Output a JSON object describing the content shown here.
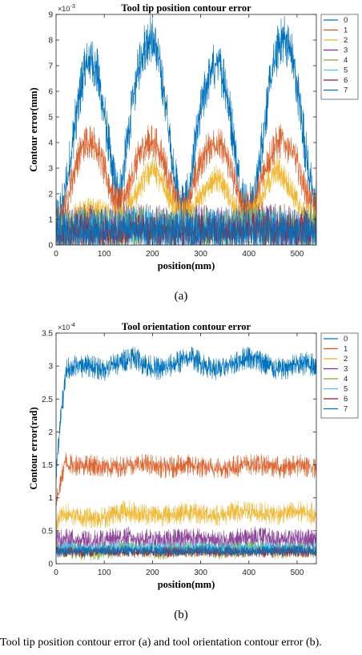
{
  "footer_text": "Tool tip position contour error (a) and tool orientation contour error (b).",
  "chart_data": [
    {
      "type": "line",
      "title": "Tool tip position contour error",
      "xlabel": "position(mm)",
      "ylabel": "Contour error(mm)",
      "xlim": [
        0,
        540
      ],
      "ylim": [
        0,
        9
      ],
      "y_multiplier": "×10^-3",
      "y_multiplier_parts": {
        "base": "×10",
        "exp": "-3"
      },
      "xticks": [
        0,
        100,
        200,
        300,
        400,
        500
      ],
      "yticks": [
        0,
        1,
        2,
        3,
        4,
        5,
        6,
        7,
        8,
        9
      ],
      "legend_position": "right",
      "caption": "(a)",
      "series": [
        {
          "name": "0",
          "color": "#0072BD",
          "x": [
            0,
            10,
            25,
            40,
            55,
            70,
            85,
            100,
            115,
            125,
            135,
            150,
            165,
            180,
            195,
            210,
            225,
            240,
            255,
            265,
            275,
            290,
            305,
            320,
            335,
            350,
            365,
            380,
            395,
            405,
            415,
            430,
            445,
            460,
            475,
            490,
            505,
            520,
            535,
            540
          ],
          "y": [
            1.0,
            1.6,
            3.0,
            5.1,
            6.8,
            7.6,
            7.1,
            5.4,
            3.3,
            2.4,
            2.4,
            4.6,
            6.6,
            7.9,
            8.4,
            7.8,
            6.1,
            3.7,
            2.0,
            1.8,
            2.2,
            4.3,
            6.0,
            7.0,
            7.4,
            6.7,
            4.9,
            2.7,
            1.8,
            1.9,
            2.4,
            4.7,
            6.7,
            8.0,
            8.4,
            7.6,
            5.9,
            3.6,
            1.9,
            1.9
          ],
          "spread": 0.7
        },
        {
          "name": "1",
          "color": "#D95319",
          "x": [
            0,
            15,
            30,
            45,
            60,
            75,
            90,
            105,
            120,
            130,
            145,
            160,
            175,
            190,
            205,
            220,
            235,
            250,
            260,
            270,
            285,
            300,
            315,
            330,
            345,
            360,
            375,
            390,
            400,
            410,
            425,
            440,
            455,
            470,
            485,
            500,
            515,
            530,
            540
          ],
          "y": [
            0.9,
            1.3,
            2.5,
            3.6,
            4.2,
            4.3,
            3.8,
            2.8,
            2.0,
            1.9,
            2.0,
            3.0,
            3.8,
            4.2,
            4.2,
            3.7,
            2.7,
            1.9,
            1.6,
            1.7,
            2.5,
            3.4,
            4.0,
            4.2,
            4.0,
            3.3,
            2.3,
            1.7,
            1.6,
            1.8,
            2.6,
            3.5,
            4.1,
            4.3,
            4.0,
            3.4,
            2.5,
            1.8,
            1.7
          ],
          "spread": 0.5
        },
        {
          "name": "2",
          "color": "#EDB120",
          "x": [
            0,
            30,
            60,
            90,
            120,
            150,
            180,
            200,
            220,
            250,
            280,
            310,
            330,
            350,
            380,
            410,
            440,
            460,
            480,
            510,
            540
          ],
          "y": [
            0.8,
            1.1,
            1.5,
            1.4,
            1.2,
            1.6,
            2.6,
            3.2,
            2.6,
            1.4,
            1.4,
            2.4,
            2.8,
            2.4,
            1.3,
            1.4,
            2.6,
            3.1,
            2.6,
            1.4,
            1.1
          ],
          "spread": 0.4
        },
        {
          "name": "3",
          "color": "#7E2F8E",
          "x": [
            0,
            60,
            120,
            180,
            240,
            300,
            360,
            420,
            480,
            540
          ],
          "y": [
            0.8,
            1.0,
            0.9,
            1.1,
            0.9,
            1.0,
            0.9,
            1.1,
            1.0,
            0.9
          ],
          "spread": 0.6
        },
        {
          "name": "4",
          "color": "#77AC30",
          "x": [
            0,
            60,
            120,
            180,
            240,
            300,
            360,
            420,
            480,
            540
          ],
          "y": [
            0.7,
            0.9,
            0.8,
            1.0,
            0.8,
            0.9,
            0.8,
            1.0,
            0.9,
            0.8
          ],
          "spread": 0.6
        },
        {
          "name": "5",
          "color": "#4DBEEE",
          "x": [
            0,
            60,
            120,
            180,
            240,
            300,
            360,
            420,
            480,
            540
          ],
          "y": [
            0.8,
            0.9,
            0.9,
            0.9,
            0.8,
            0.9,
            0.9,
            0.9,
            0.8,
            0.9
          ],
          "spread": 0.6
        },
        {
          "name": "6",
          "color": "#A2142F",
          "x": [
            0,
            60,
            120,
            180,
            240,
            300,
            360,
            420,
            480,
            540
          ],
          "y": [
            0.6,
            0.8,
            0.7,
            0.8,
            0.7,
            0.8,
            0.7,
            0.8,
            0.7,
            0.7
          ],
          "spread": 0.5
        },
        {
          "name": "7",
          "color": "#0072BD",
          "x": [
            0,
            60,
            120,
            180,
            240,
            300,
            360,
            420,
            480,
            540
          ],
          "y": [
            0.7,
            0.8,
            0.8,
            0.8,
            0.8,
            0.8,
            0.8,
            0.8,
            0.8,
            0.8
          ],
          "spread": 0.6
        }
      ]
    },
    {
      "type": "line",
      "title": "Tool orientation contour error",
      "xlabel": "position(mm)",
      "ylabel": "Contour error(rad)",
      "xlim": [
        0,
        540
      ],
      "ylim": [
        0,
        3.5
      ],
      "y_multiplier": "×10^-4",
      "y_multiplier_parts": {
        "base": "×10",
        "exp": "-4"
      },
      "xticks": [
        0,
        100,
        200,
        300,
        400,
        500
      ],
      "yticks": [
        0,
        0.5,
        1,
        1.5,
        2,
        2.5,
        3,
        3.5
      ],
      "legend_position": "right",
      "caption": "(b)",
      "series": [
        {
          "name": "0",
          "color": "#0072BD",
          "x": [
            0,
            10,
            22,
            40,
            70,
            100,
            130,
            160,
            190,
            220,
            250,
            280,
            310,
            340,
            370,
            400,
            430,
            460,
            490,
            520,
            540
          ],
          "y": [
            1.4,
            2.3,
            3.0,
            3.05,
            3.05,
            3.0,
            3.1,
            3.2,
            3.05,
            3.0,
            3.1,
            3.2,
            3.05,
            3.0,
            3.1,
            3.2,
            3.1,
            3.0,
            3.05,
            3.1,
            3.05
          ],
          "spread": 0.13
        },
        {
          "name": "1",
          "color": "#D95319",
          "x": [
            0,
            8,
            18,
            30,
            70,
            110,
            150,
            190,
            230,
            270,
            310,
            350,
            390,
            430,
            470,
            510,
            540
          ],
          "y": [
            1.0,
            1.2,
            1.6,
            1.55,
            1.55,
            1.5,
            1.55,
            1.55,
            1.5,
            1.55,
            1.5,
            1.5,
            1.55,
            1.55,
            1.5,
            1.55,
            1.5
          ],
          "spread": 0.12
        },
        {
          "name": "2",
          "color": "#EDB120",
          "x": [
            0,
            10,
            25,
            60,
            100,
            140,
            180,
            220,
            260,
            300,
            340,
            380,
            420,
            460,
            500,
            540
          ],
          "y": [
            0.6,
            0.8,
            0.8,
            0.75,
            0.75,
            0.85,
            0.8,
            0.78,
            0.82,
            0.8,
            0.78,
            0.84,
            0.82,
            0.8,
            0.84,
            0.8
          ],
          "spread": 0.12
        },
        {
          "name": "3",
          "color": "#7E2F8E",
          "x": [
            0,
            20,
            60,
            100,
            140,
            180,
            220,
            260,
            300,
            340,
            380,
            420,
            460,
            500,
            540
          ],
          "y": [
            0.4,
            0.42,
            0.38,
            0.4,
            0.45,
            0.42,
            0.38,
            0.44,
            0.42,
            0.38,
            0.42,
            0.45,
            0.4,
            0.42,
            0.4
          ],
          "spread": 0.12
        },
        {
          "name": "4",
          "color": "#77AC30",
          "x": [
            0,
            20,
            60,
            100,
            140,
            180,
            220,
            260,
            300,
            340,
            380,
            420,
            460,
            500,
            540
          ],
          "y": [
            0.25,
            0.25,
            0.2,
            0.22,
            0.26,
            0.24,
            0.22,
            0.26,
            0.25,
            0.22,
            0.24,
            0.27,
            0.23,
            0.25,
            0.24
          ],
          "spread": 0.09
        },
        {
          "name": "5",
          "color": "#4DBEEE",
          "x": [
            0,
            60,
            120,
            180,
            240,
            300,
            360,
            420,
            480,
            540
          ],
          "y": [
            0.28,
            0.26,
            0.28,
            0.27,
            0.27,
            0.28,
            0.26,
            0.28,
            0.27,
            0.27
          ],
          "spread": 0.07
        },
        {
          "name": "6",
          "color": "#A2142F",
          "x": [
            0,
            60,
            120,
            180,
            240,
            300,
            360,
            420,
            480,
            540
          ],
          "y": [
            0.2,
            0.2,
            0.21,
            0.2,
            0.2,
            0.21,
            0.2,
            0.2,
            0.21,
            0.2
          ],
          "spread": 0.06
        },
        {
          "name": "7",
          "color": "#0072BD",
          "x": [
            0,
            60,
            120,
            180,
            240,
            300,
            360,
            420,
            480,
            540
          ],
          "y": [
            0.22,
            0.22,
            0.23,
            0.22,
            0.22,
            0.23,
            0.22,
            0.22,
            0.23,
            0.22
          ],
          "spread": 0.06
        }
      ]
    }
  ]
}
